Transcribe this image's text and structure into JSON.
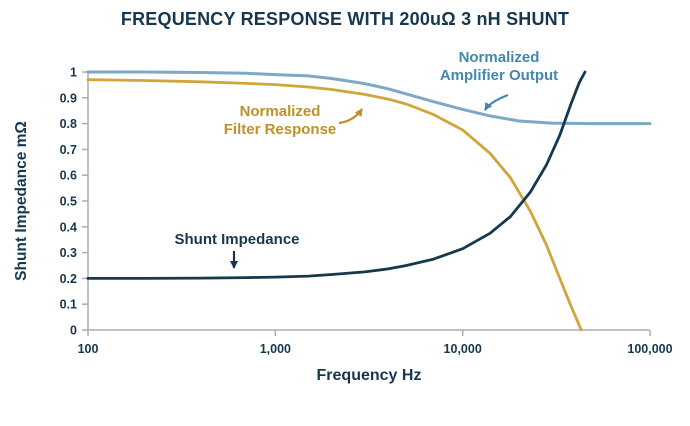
{
  "chart_data": {
    "type": "line",
    "title": "FREQUENCY RESPONSE WITH 200uΩ 3 nH SHUNT",
    "xlabel": "Frequency Hz",
    "ylabel": "Shunt Impedance mΩ",
    "x_scale": "log",
    "xlim": [
      100,
      100000
    ],
    "ylim": [
      0,
      1
    ],
    "grid": false,
    "legend_position": "none",
    "axis_color": "#a9aeb4",
    "text_color": "#16384f",
    "x_ticks": [
      {
        "value": 100,
        "label": "100"
      },
      {
        "value": 1000,
        "label": "1,000"
      },
      {
        "value": 10000,
        "label": "10,000"
      },
      {
        "value": 100000,
        "label": "100,000"
      }
    ],
    "y_ticks": [
      {
        "value": 0,
        "label": "0"
      },
      {
        "value": 0.1,
        "label": "0.1"
      },
      {
        "value": 0.2,
        "label": "0.2"
      },
      {
        "value": 0.3,
        "label": "0.3"
      },
      {
        "value": 0.4,
        "label": "0.4"
      },
      {
        "value": 0.5,
        "label": "0.5"
      },
      {
        "value": 0.6,
        "label": "0.6"
      },
      {
        "value": 0.7,
        "label": "0.7"
      },
      {
        "value": 0.8,
        "label": "0.8"
      },
      {
        "value": 0.9,
        "label": "0.9"
      },
      {
        "value": 1,
        "label": "1"
      }
    ],
    "series": [
      {
        "name": "Normalized Amplifier Output",
        "color": "#7ea9c6",
        "width": 3,
        "x": [
          100,
          200,
          400,
          700,
          1000,
          1500,
          2000,
          3000,
          4000,
          5000,
          7000,
          10000,
          14000,
          20000,
          30000,
          50000,
          100000
        ],
        "y": [
          1.0,
          1.0,
          0.998,
          0.995,
          0.99,
          0.985,
          0.975,
          0.955,
          0.935,
          0.915,
          0.885,
          0.855,
          0.83,
          0.81,
          0.802,
          0.8,
          0.8
        ]
      },
      {
        "name": "Normalized Filter Response",
        "color": "#d0a63c",
        "width": 2.8,
        "x": [
          100,
          200,
          400,
          700,
          1000,
          1500,
          2000,
          3000,
          4000,
          5000,
          7000,
          10000,
          14000,
          18000,
          23000,
          28000,
          33000,
          38000,
          43000
        ],
        "y": [
          0.97,
          0.967,
          0.962,
          0.956,
          0.951,
          0.942,
          0.932,
          0.913,
          0.895,
          0.876,
          0.835,
          0.775,
          0.685,
          0.59,
          0.46,
          0.33,
          0.2,
          0.09,
          0.0
        ]
      },
      {
        "name": "Shunt Impedance",
        "color": "#16384f",
        "width": 2.8,
        "x": [
          100,
          200,
          400,
          700,
          1000,
          1500,
          2000,
          3000,
          4000,
          5000,
          7000,
          10000,
          14000,
          18000,
          23000,
          28000,
          33000,
          38000,
          42000,
          45000
        ],
        "y": [
          0.2,
          0.2,
          0.201,
          0.203,
          0.205,
          0.209,
          0.215,
          0.225,
          0.237,
          0.25,
          0.275,
          0.315,
          0.375,
          0.44,
          0.535,
          0.64,
          0.755,
          0.88,
          0.96,
          1.0
        ]
      }
    ],
    "annotations": [
      {
        "label": "Normalized Amplifier Output",
        "lines": [
          "Normalized",
          "Amplifier Output"
        ],
        "color": "#4289ac"
      },
      {
        "label": "Normalized Filter Response",
        "lines": [
          "Normalized",
          "Filter Response"
        ],
        "color": "#c09027"
      },
      {
        "label": "Shunt Impedance",
        "lines": [
          "Shunt Impedance"
        ],
        "color": "#16384f"
      }
    ]
  }
}
